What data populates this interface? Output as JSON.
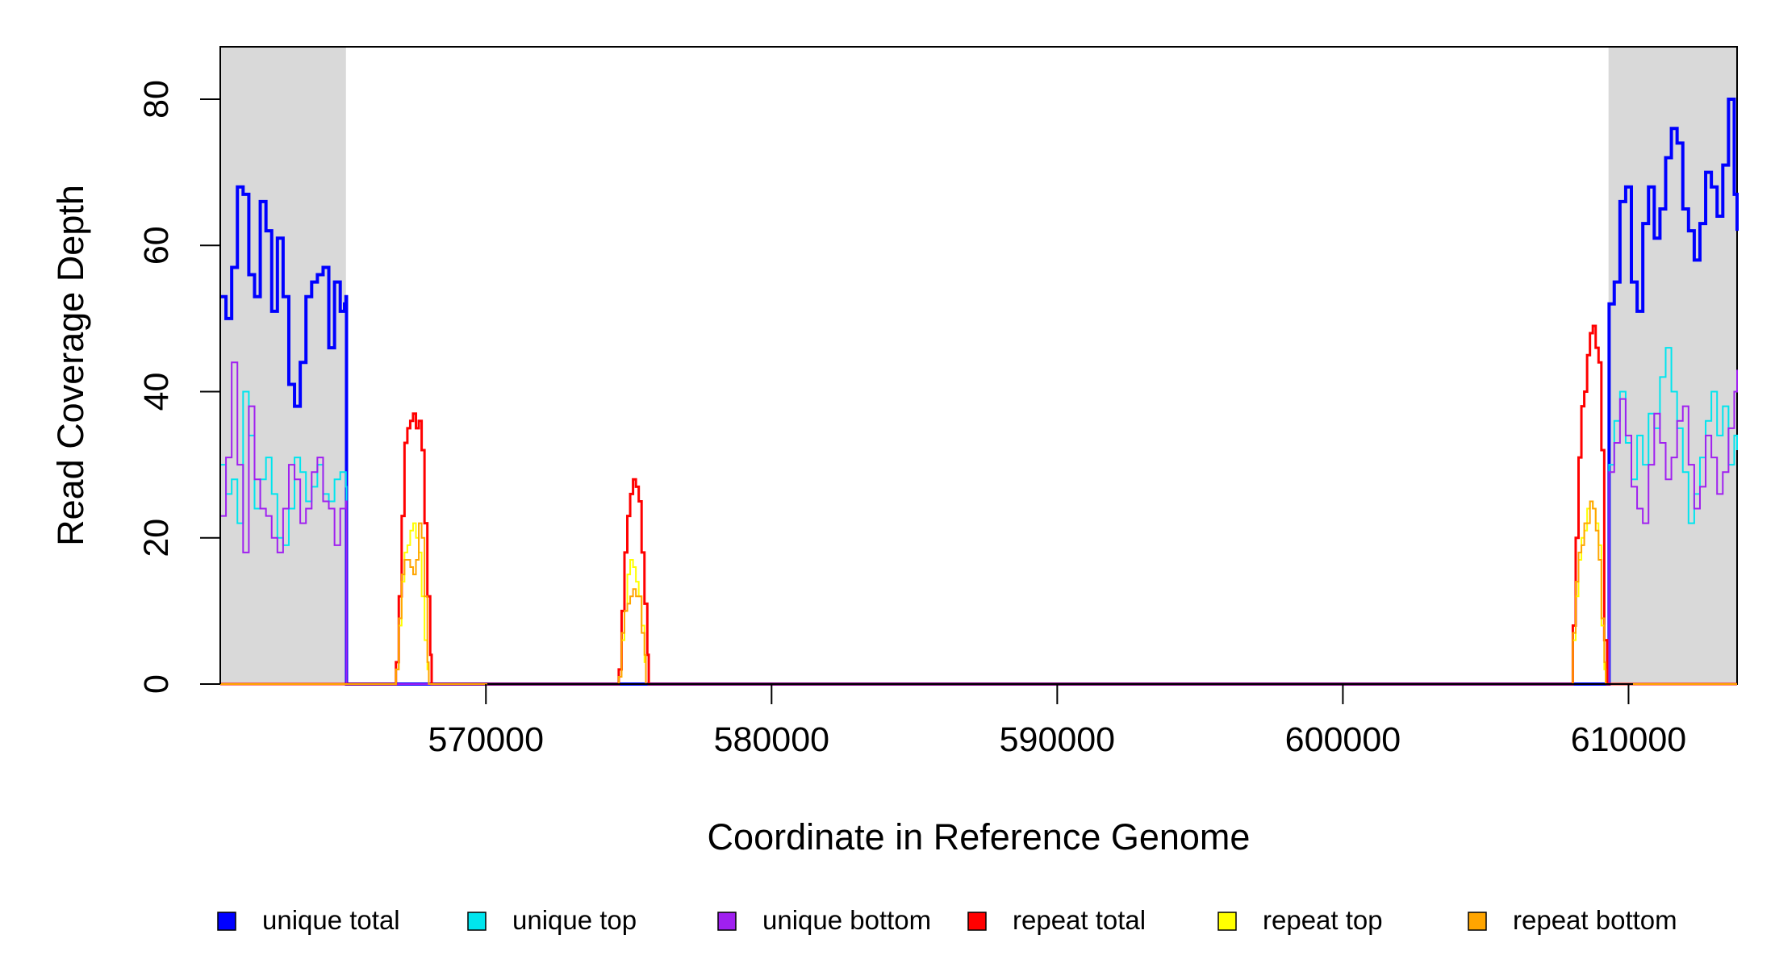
{
  "chart_data": {
    "type": "line",
    "title": "",
    "xlabel": "Coordinate in Reference Genome",
    "ylabel": "Read Coverage Depth",
    "xlim": [
      560700,
      613800
    ],
    "ylim": [
      0,
      87
    ],
    "x_ticks": [
      570000,
      580000,
      590000,
      600000,
      610000
    ],
    "x_tick_labels": [
      "570000",
      "580000",
      "590000",
      "600000",
      "610000"
    ],
    "y_ticks": [
      0,
      20,
      40,
      60,
      80
    ],
    "y_tick_labels": [
      "0",
      "20",
      "40",
      "60",
      "80"
    ],
    "grid": false,
    "legend_position": "bottom",
    "shaded_regions": [
      {
        "x0": 560700,
        "x1": 565100,
        "color": "#d9d9d9"
      },
      {
        "x0": 609300,
        "x1": 613800,
        "color": "#d9d9d9"
      }
    ],
    "series": [
      {
        "name": "unique total",
        "color": "#0000ff",
        "width": 4,
        "points": [
          [
            560700,
            53
          ],
          [
            560900,
            50
          ],
          [
            561100,
            57
          ],
          [
            561300,
            68
          ],
          [
            561500,
            67
          ],
          [
            561700,
            56
          ],
          [
            561900,
            53
          ],
          [
            562100,
            66
          ],
          [
            562300,
            62
          ],
          [
            562500,
            51
          ],
          [
            562700,
            61
          ],
          [
            562900,
            53
          ],
          [
            563100,
            41
          ],
          [
            563300,
            38
          ],
          [
            563500,
            44
          ],
          [
            563700,
            53
          ],
          [
            563900,
            55
          ],
          [
            564100,
            56
          ],
          [
            564300,
            57
          ],
          [
            564500,
            46
          ],
          [
            564700,
            55
          ],
          [
            564900,
            51
          ],
          [
            565050,
            52
          ],
          [
            565100,
            53
          ],
          [
            565120,
            0
          ],
          [
            609300,
            0
          ],
          [
            609320,
            52
          ],
          [
            609500,
            55
          ],
          [
            609700,
            66
          ],
          [
            609900,
            68
          ],
          [
            610100,
            55
          ],
          [
            610300,
            51
          ],
          [
            610500,
            63
          ],
          [
            610700,
            68
          ],
          [
            610900,
            61
          ],
          [
            611100,
            65
          ],
          [
            611300,
            72
          ],
          [
            611500,
            76
          ],
          [
            611700,
            74
          ],
          [
            611900,
            65
          ],
          [
            612100,
            62
          ],
          [
            612300,
            58
          ],
          [
            612500,
            63
          ],
          [
            612700,
            70
          ],
          [
            612900,
            68
          ],
          [
            613100,
            64
          ],
          [
            613300,
            71
          ],
          [
            613500,
            80
          ],
          [
            613700,
            67
          ],
          [
            613800,
            62
          ]
        ]
      },
      {
        "name": "unique top",
        "color": "#00e5ee",
        "width": 2,
        "points": [
          [
            560700,
            30
          ],
          [
            560900,
            26
          ],
          [
            561100,
            28
          ],
          [
            561300,
            22
          ],
          [
            561500,
            40
          ],
          [
            561700,
            34
          ],
          [
            561900,
            24
          ],
          [
            562100,
            28
          ],
          [
            562300,
            31
          ],
          [
            562500,
            26
          ],
          [
            562700,
            20
          ],
          [
            562900,
            19
          ],
          [
            563100,
            24
          ],
          [
            563300,
            31
          ],
          [
            563500,
            29
          ],
          [
            563700,
            25
          ],
          [
            563900,
            27
          ],
          [
            564100,
            30
          ],
          [
            564300,
            26
          ],
          [
            564500,
            25
          ],
          [
            564700,
            28
          ],
          [
            564900,
            29
          ],
          [
            565100,
            27
          ],
          [
            565120,
            0
          ],
          [
            609300,
            0
          ],
          [
            609320,
            30
          ],
          [
            609500,
            36
          ],
          [
            609700,
            40
          ],
          [
            609900,
            33
          ],
          [
            610100,
            28
          ],
          [
            610300,
            34
          ],
          [
            610500,
            30
          ],
          [
            610700,
            37
          ],
          [
            610900,
            35
          ],
          [
            611100,
            42
          ],
          [
            611300,
            46
          ],
          [
            611500,
            40
          ],
          [
            611700,
            35
          ],
          [
            611900,
            29
          ],
          [
            612100,
            22
          ],
          [
            612300,
            26
          ],
          [
            612500,
            31
          ],
          [
            612700,
            36
          ],
          [
            612900,
            40
          ],
          [
            613100,
            34
          ],
          [
            613300,
            38
          ],
          [
            613500,
            30
          ],
          [
            613700,
            34
          ],
          [
            613800,
            32
          ]
        ]
      },
      {
        "name": "unique bottom",
        "color": "#a020f0",
        "width": 2,
        "points": [
          [
            560700,
            23
          ],
          [
            560900,
            31
          ],
          [
            561100,
            44
          ],
          [
            561300,
            30
          ],
          [
            561500,
            18
          ],
          [
            561700,
            38
          ],
          [
            561900,
            28
          ],
          [
            562100,
            24
          ],
          [
            562300,
            23
          ],
          [
            562500,
            20
          ],
          [
            562700,
            18
          ],
          [
            562900,
            24
          ],
          [
            563100,
            30
          ],
          [
            563300,
            28
          ],
          [
            563500,
            22
          ],
          [
            563700,
            24
          ],
          [
            563900,
            29
          ],
          [
            564100,
            31
          ],
          [
            564300,
            25
          ],
          [
            564500,
            24
          ],
          [
            564700,
            19
          ],
          [
            564900,
            24
          ],
          [
            565100,
            25
          ],
          [
            565120,
            0
          ],
          [
            609300,
            0
          ],
          [
            609320,
            29
          ],
          [
            609500,
            33
          ],
          [
            609700,
            39
          ],
          [
            609900,
            34
          ],
          [
            610100,
            27
          ],
          [
            610300,
            24
          ],
          [
            610500,
            22
          ],
          [
            610700,
            30
          ],
          [
            610900,
            37
          ],
          [
            611100,
            33
          ],
          [
            611300,
            28
          ],
          [
            611500,
            31
          ],
          [
            611700,
            36
          ],
          [
            611900,
            38
          ],
          [
            612100,
            30
          ],
          [
            612300,
            24
          ],
          [
            612500,
            27
          ],
          [
            612700,
            34
          ],
          [
            612900,
            31
          ],
          [
            613100,
            26
          ],
          [
            613300,
            29
          ],
          [
            613500,
            35
          ],
          [
            613700,
            40
          ],
          [
            613800,
            43
          ]
        ]
      },
      {
        "name": "repeat total",
        "color": "#ff0000",
        "width": 3,
        "points": [
          [
            560700,
            0
          ],
          [
            566800,
            0
          ],
          [
            566850,
            3
          ],
          [
            566950,
            12
          ],
          [
            567050,
            23
          ],
          [
            567150,
            33
          ],
          [
            567250,
            35
          ],
          [
            567350,
            36
          ],
          [
            567450,
            37
          ],
          [
            567550,
            35
          ],
          [
            567650,
            36
          ],
          [
            567750,
            32
          ],
          [
            567850,
            22
          ],
          [
            567950,
            12
          ],
          [
            568050,
            4
          ],
          [
            568100,
            0
          ],
          [
            574600,
            0
          ],
          [
            574650,
            2
          ],
          [
            574750,
            10
          ],
          [
            574850,
            18
          ],
          [
            574950,
            23
          ],
          [
            575050,
            26
          ],
          [
            575150,
            28
          ],
          [
            575250,
            27
          ],
          [
            575350,
            25
          ],
          [
            575450,
            18
          ],
          [
            575550,
            11
          ],
          [
            575650,
            4
          ],
          [
            575700,
            0
          ],
          [
            608000,
            0
          ],
          [
            608050,
            8
          ],
          [
            608150,
            20
          ],
          [
            608250,
            31
          ],
          [
            608350,
            38
          ],
          [
            608450,
            40
          ],
          [
            608550,
            45
          ],
          [
            608650,
            48
          ],
          [
            608750,
            49
          ],
          [
            608850,
            46
          ],
          [
            608950,
            44
          ],
          [
            609050,
            32
          ],
          [
            609150,
            6
          ],
          [
            609250,
            0
          ],
          [
            613800,
            0
          ]
        ]
      },
      {
        "name": "repeat top",
        "color": "#ffff00",
        "width": 2,
        "points": [
          [
            560700,
            0
          ],
          [
            566800,
            0
          ],
          [
            566850,
            2
          ],
          [
            566950,
            8
          ],
          [
            567050,
            14
          ],
          [
            567150,
            18
          ],
          [
            567250,
            19
          ],
          [
            567350,
            21
          ],
          [
            567450,
            22
          ],
          [
            567550,
            20
          ],
          [
            567650,
            18
          ],
          [
            567750,
            12
          ],
          [
            567850,
            6
          ],
          [
            567950,
            2
          ],
          [
            568000,
            0
          ],
          [
            574600,
            0
          ],
          [
            574650,
            1
          ],
          [
            574750,
            6
          ],
          [
            574850,
            10
          ],
          [
            574950,
            15
          ],
          [
            575050,
            17
          ],
          [
            575150,
            16
          ],
          [
            575250,
            14
          ],
          [
            575350,
            12
          ],
          [
            575450,
            8
          ],
          [
            575550,
            3
          ],
          [
            575600,
            0
          ],
          [
            608000,
            0
          ],
          [
            608050,
            6
          ],
          [
            608150,
            12
          ],
          [
            608250,
            17
          ],
          [
            608350,
            20
          ],
          [
            608450,
            21
          ],
          [
            608550,
            24
          ],
          [
            608650,
            25
          ],
          [
            608750,
            24
          ],
          [
            608850,
            22
          ],
          [
            608950,
            19
          ],
          [
            609050,
            8
          ],
          [
            609150,
            2
          ],
          [
            609200,
            0
          ],
          [
            613800,
            0
          ]
        ]
      },
      {
        "name": "repeat bottom",
        "color": "#ffa500",
        "width": 2,
        "points": [
          [
            560700,
            0
          ],
          [
            566800,
            0
          ],
          [
            566850,
            2
          ],
          [
            566950,
            9
          ],
          [
            567050,
            15
          ],
          [
            567150,
            17
          ],
          [
            567250,
            17
          ],
          [
            567350,
            16
          ],
          [
            567450,
            15
          ],
          [
            567550,
            17
          ],
          [
            567650,
            22
          ],
          [
            567750,
            20
          ],
          [
            567850,
            12
          ],
          [
            567950,
            3
          ],
          [
            568000,
            0
          ],
          [
            574600,
            0
          ],
          [
            574650,
            1
          ],
          [
            574750,
            7
          ],
          [
            574850,
            10
          ],
          [
            574950,
            11
          ],
          [
            575050,
            12
          ],
          [
            575150,
            13
          ],
          [
            575250,
            12
          ],
          [
            575350,
            12
          ],
          [
            575450,
            7
          ],
          [
            575550,
            4
          ],
          [
            575600,
            0
          ],
          [
            608000,
            0
          ],
          [
            608050,
            7
          ],
          [
            608150,
            14
          ],
          [
            608250,
            18
          ],
          [
            608350,
            19
          ],
          [
            608450,
            22
          ],
          [
            608550,
            22
          ],
          [
            608650,
            25
          ],
          [
            608750,
            24
          ],
          [
            608850,
            21
          ],
          [
            608950,
            17
          ],
          [
            609050,
            9
          ],
          [
            609150,
            3
          ],
          [
            609200,
            0
          ],
          [
            613800,
            0
          ]
        ]
      }
    ]
  }
}
